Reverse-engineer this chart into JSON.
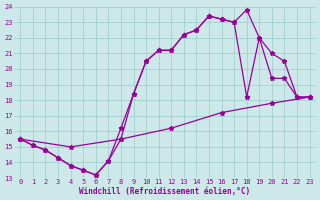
{
  "bg_color": "#cce8e8",
  "grid_color": "#99cccc",
  "line_color": "#990099",
  "marker": "*",
  "markersize": 3.5,
  "linewidth": 0.9,
  "xlabel": "Windchill (Refroidissement éolien,°C)",
  "xlabel_color": "#990099",
  "tick_color": "#990099",
  "xlim": [
    -0.5,
    23.5
  ],
  "ylim": [
    13,
    24
  ],
  "yticks": [
    13,
    14,
    15,
    16,
    17,
    18,
    19,
    20,
    21,
    22,
    23,
    24
  ],
  "xticks": [
    0,
    1,
    2,
    3,
    4,
    5,
    6,
    7,
    8,
    9,
    10,
    11,
    12,
    13,
    14,
    15,
    16,
    17,
    18,
    19,
    20,
    21,
    22,
    23
  ],
  "line1_x": [
    0,
    1,
    2,
    3,
    4,
    5,
    6,
    7,
    8,
    9,
    10,
    11,
    12,
    13,
    14,
    15,
    16,
    17,
    18,
    19,
    20,
    21,
    22,
    23
  ],
  "line1_y": [
    15.5,
    15.1,
    14.8,
    14.3,
    13.8,
    13.5,
    13.2,
    14.1,
    15.5,
    18.4,
    20.5,
    21.2,
    21.2,
    22.2,
    22.5,
    23.4,
    23.2,
    23.0,
    23.8,
    22.0,
    21.0,
    20.5,
    18.2,
    18.2
  ],
  "line2_x": [
    0,
    1,
    2,
    3,
    4,
    5,
    6,
    7,
    8,
    9,
    10,
    11,
    12,
    13,
    14,
    15,
    16,
    17,
    18,
    19,
    20,
    21,
    22,
    23
  ],
  "line2_y": [
    15.5,
    15.1,
    14.8,
    14.3,
    13.8,
    13.5,
    13.2,
    14.1,
    16.2,
    18.4,
    20.5,
    21.2,
    21.2,
    22.2,
    22.5,
    23.4,
    23.2,
    23.0,
    18.2,
    22.0,
    19.4,
    19.4,
    18.2,
    18.2
  ],
  "line3_x": [
    0,
    4,
    8,
    12,
    16,
    20,
    23
  ],
  "line3_y": [
    15.5,
    15.0,
    15.5,
    16.2,
    17.2,
    17.8,
    18.2
  ]
}
